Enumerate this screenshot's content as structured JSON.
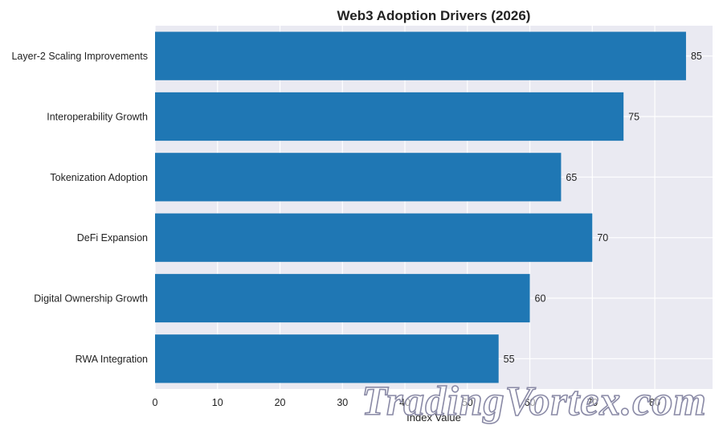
{
  "chart_data": {
    "type": "bar",
    "orientation": "horizontal",
    "title": "Web3 Adoption Drivers (2026)",
    "xlabel": "Index Value",
    "ylabel": "",
    "categories": [
      "Layer-2 Scaling Improvements",
      "Interoperability Growth",
      "Tokenization Adoption",
      "DeFi Expansion",
      "Digital Ownership Growth",
      "RWA Integration"
    ],
    "values": [
      85,
      75,
      65,
      70,
      60,
      55
    ],
    "xlim": [
      0,
      89.25
    ],
    "xticks": [
      0,
      10,
      20,
      30,
      40,
      50,
      60,
      70,
      80
    ],
    "grid": true,
    "bar_color": "#1f77b4",
    "background_color": "#eaeaf2",
    "grid_color": "#ffffff"
  },
  "watermark": {
    "text": "TradingVortex.com"
  }
}
